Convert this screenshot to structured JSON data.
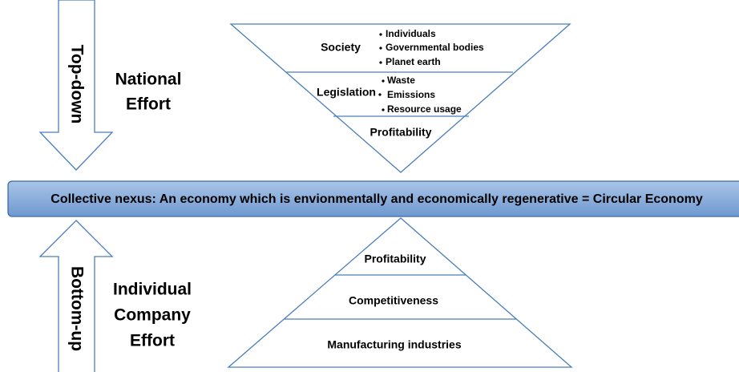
{
  "top_down": {
    "arrow_label": "Top-down",
    "effort": [
      "National",
      "Effort"
    ]
  },
  "inverted_pyramid": {
    "levels": [
      {
        "label": "Society",
        "bullets": [
          "Individuals",
          "Governmental bodies",
          "Planet earth"
        ]
      },
      {
        "label": "Legislation",
        "bullets": [
          "Waste",
          "Emissions",
          "Resource usage"
        ]
      },
      {
        "label": "Profitability",
        "bullets": []
      }
    ]
  },
  "nexus": "Collective nexus: An economy which is envionmentally and economically regenerative = Circular Economy",
  "bottom_up": {
    "arrow_label": "Bottom-up",
    "effort": [
      "Individual",
      "Company",
      "Effort"
    ]
  },
  "pyramid": {
    "levels": [
      "Profitability",
      "Competitiveness",
      "Manufacturing industries"
    ]
  }
}
